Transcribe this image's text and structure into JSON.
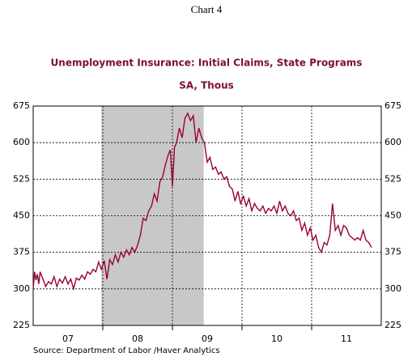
{
  "chart_data": {
    "type": "line",
    "header": "Chart 4",
    "title": "Unemployment Insurance: Initial Claims, State Programs",
    "subtitle": "SA, Thous",
    "source": "Source:  Department of Labor /Haver Analytics",
    "ylim": [
      225,
      675
    ],
    "yticks": [
      225,
      300,
      375,
      450,
      525,
      600,
      675
    ],
    "xlim": [
      2007.0,
      2012.0
    ],
    "xticks": [
      {
        "value": 2007.5,
        "label": "07"
      },
      {
        "value": 2008.5,
        "label": "08"
      },
      {
        "value": 2009.5,
        "label": "09"
      },
      {
        "value": 2010.5,
        "label": "10"
      },
      {
        "value": 2011.5,
        "label": "11"
      }
    ],
    "xgrid": [
      2008,
      2009,
      2010,
      2011
    ],
    "grid": true,
    "recession": [
      2007.98,
      2009.45
    ],
    "recession_color": "#c8c8c8",
    "series": [
      {
        "color": "#990033",
        "x": [
          2007.0,
          2007.02,
          2007.04,
          2007.06,
          2007.08,
          2007.1,
          2007.14,
          2007.18,
          2007.22,
          2007.26,
          2007.3,
          2007.34,
          2007.38,
          2007.42,
          2007.46,
          2007.5,
          2007.54,
          2007.58,
          2007.62,
          2007.66,
          2007.7,
          2007.74,
          2007.78,
          2007.82,
          2007.86,
          2007.9,
          2007.94,
          2007.98,
          2008.02,
          2008.06,
          2008.1,
          2008.14,
          2008.18,
          2008.22,
          2008.26,
          2008.3,
          2008.34,
          2008.38,
          2008.42,
          2008.46,
          2008.5,
          2008.54,
          2008.58,
          2008.62,
          2008.66,
          2008.7,
          2008.74,
          2008.78,
          2008.82,
          2008.86,
          2008.9,
          2008.94,
          2008.97,
          2009.0,
          2009.03,
          2009.06,
          2009.1,
          2009.14,
          2009.18,
          2009.22,
          2009.26,
          2009.3,
          2009.34,
          2009.38,
          2009.42,
          2009.46,
          2009.5,
          2009.54,
          2009.58,
          2009.62,
          2009.66,
          2009.7,
          2009.74,
          2009.78,
          2009.82,
          2009.86,
          2009.9,
          2009.94,
          2009.98,
          2010.02,
          2010.06,
          2010.1,
          2010.14,
          2010.18,
          2010.22,
          2010.26,
          2010.3,
          2010.34,
          2010.38,
          2010.42,
          2010.46,
          2010.5,
          2010.54,
          2010.58,
          2010.62,
          2010.66,
          2010.7,
          2010.74,
          2010.78,
          2010.82,
          2010.86,
          2010.9,
          2010.94,
          2010.98,
          2011.02,
          2011.06,
          2011.1,
          2011.14,
          2011.18,
          2011.22,
          2011.26,
          2011.3,
          2011.34,
          2011.38,
          2011.42,
          2011.46,
          2011.5,
          2011.54,
          2011.58,
          2011.62,
          2011.66,
          2011.7,
          2011.74,
          2011.78,
          2011.82,
          2011.86
        ],
        "values": [
          300,
          335,
          318,
          330,
          310,
          335,
          320,
          305,
          315,
          310,
          325,
          305,
          320,
          312,
          325,
          310,
          320,
          300,
          322,
          318,
          328,
          320,
          335,
          330,
          340,
          335,
          355,
          340,
          358,
          320,
          360,
          350,
          370,
          355,
          375,
          365,
          380,
          370,
          385,
          375,
          390,
          410,
          445,
          440,
          460,
          470,
          495,
          480,
          520,
          530,
          555,
          575,
          585,
          510,
          590,
          600,
          630,
          610,
          650,
          660,
          645,
          655,
          600,
          630,
          610,
          600,
          560,
          570,
          545,
          550,
          535,
          540,
          525,
          530,
          510,
          505,
          480,
          500,
          475,
          490,
          470,
          485,
          460,
          475,
          465,
          460,
          470,
          455,
          465,
          460,
          470,
          455,
          480,
          460,
          470,
          455,
          450,
          460,
          440,
          445,
          420,
          435,
          410,
          425,
          400,
          410,
          385,
          375,
          395,
          390,
          410,
          475,
          420,
          430,
          410,
          430,
          425,
          410,
          405,
          400,
          405,
          400,
          420,
          400,
          395,
          385
        ]
      }
    ]
  }
}
